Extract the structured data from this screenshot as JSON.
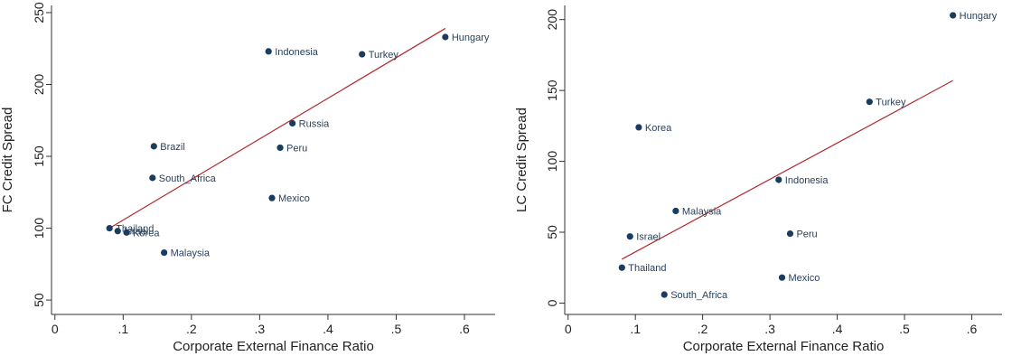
{
  "chart_data": [
    {
      "type": "scatter",
      "xlabel": "Corporate External Finance Ratio",
      "ylabel": "FC Credit Spread",
      "xlim": [
        -0.005,
        0.645
      ],
      "ylim": [
        40,
        255
      ],
      "xticks": [
        0,
        0.1,
        0.2,
        0.3,
        0.4,
        0.5,
        0.6
      ],
      "xtick_labels": [
        "0",
        ".1",
        ".2",
        ".3",
        ".4",
        ".5",
        ".6"
      ],
      "yticks": [
        50,
        100,
        150,
        200,
        250
      ],
      "ytick_labels": [
        "50",
        "100",
        "150",
        "200",
        "250"
      ],
      "grid": false,
      "marker_color": "#1a3c5e",
      "fit_color": "#b2292e",
      "points": [
        {
          "label": "Hungary",
          "x": 0.572,
          "y": 233
        },
        {
          "label": "Indonesia",
          "x": 0.313,
          "y": 223
        },
        {
          "label": "Turkey",
          "x": 0.45,
          "y": 221
        },
        {
          "label": "Russia",
          "x": 0.348,
          "y": 173
        },
        {
          "label": "Brazil",
          "x": 0.145,
          "y": 157
        },
        {
          "label": "Peru",
          "x": 0.33,
          "y": 156
        },
        {
          "label": "South_Africa",
          "x": 0.143,
          "y": 135
        },
        {
          "label": "Mexico",
          "x": 0.318,
          "y": 121
        },
        {
          "label": "Thailand",
          "x": 0.08,
          "y": 100
        },
        {
          "label": "Israel",
          "x": 0.092,
          "y": 98
        },
        {
          "label": "Korea",
          "x": 0.105,
          "y": 97
        },
        {
          "label": "Malaysia",
          "x": 0.16,
          "y": 83
        }
      ],
      "fit_line": {
        "x": [
          0.08,
          0.572
        ],
        "y": [
          100,
          239
        ]
      }
    },
    {
      "type": "scatter",
      "xlabel": "Corporate External Finance Ratio",
      "ylabel": "LC Credit Spread",
      "xlim": [
        -0.005,
        0.645
      ],
      "ylim": [
        -8,
        210
      ],
      "xticks": [
        0,
        0.1,
        0.2,
        0.3,
        0.4,
        0.5,
        0.6
      ],
      "xtick_labels": [
        "0",
        ".1",
        ".2",
        ".3",
        ".4",
        ".5",
        ".6"
      ],
      "yticks": [
        0,
        50,
        100,
        150,
        200
      ],
      "ytick_labels": [
        "0",
        "50",
        "100",
        "150",
        "200"
      ],
      "grid": false,
      "marker_color": "#1a3c5e",
      "fit_color": "#b2292e",
      "points": [
        {
          "label": "Hungary",
          "x": 0.572,
          "y": 203
        },
        {
          "label": "Turkey",
          "x": 0.448,
          "y": 142
        },
        {
          "label": "Korea",
          "x": 0.105,
          "y": 124
        },
        {
          "label": "Indonesia",
          "x": 0.313,
          "y": 87
        },
        {
          "label": "Malaysia",
          "x": 0.16,
          "y": 65
        },
        {
          "label": "Peru",
          "x": 0.33,
          "y": 49
        },
        {
          "label": "Israel",
          "x": 0.092,
          "y": 47
        },
        {
          "label": "Thailand",
          "x": 0.08,
          "y": 25
        },
        {
          "label": "Mexico",
          "x": 0.318,
          "y": 18
        },
        {
          "label": "South_Africa",
          "x": 0.143,
          "y": 6
        }
      ],
      "fit_line": {
        "x": [
          0.08,
          0.572
        ],
        "y": [
          31,
          157
        ]
      }
    }
  ]
}
